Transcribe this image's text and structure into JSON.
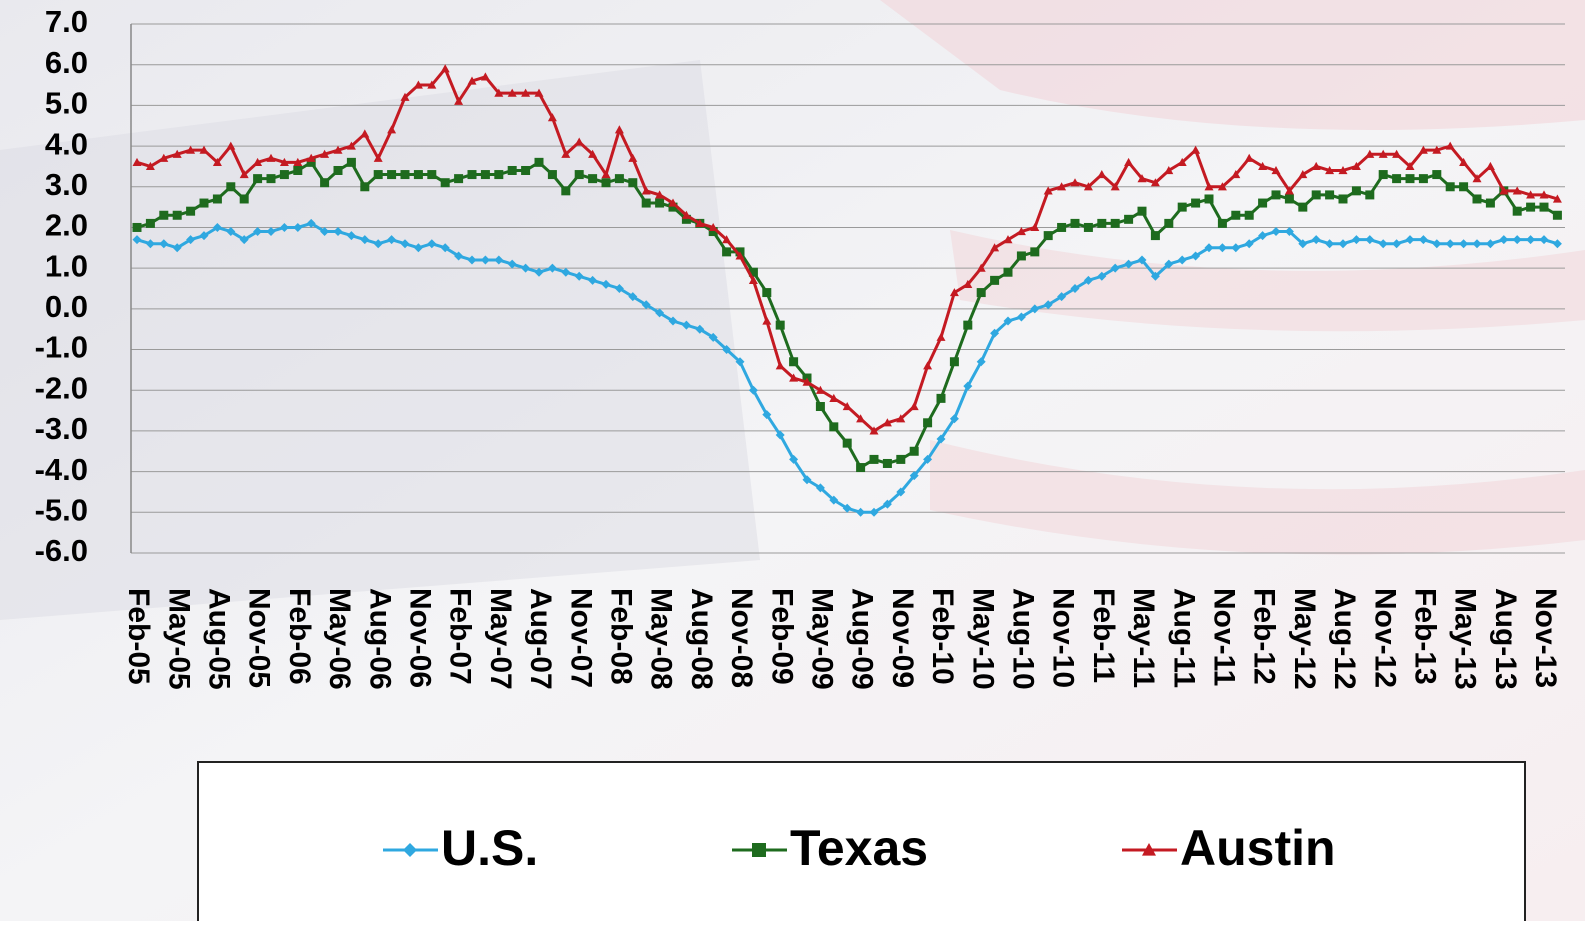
{
  "chart_data": {
    "type": "line",
    "categories": [
      "Feb-05",
      null,
      null,
      "May-05",
      null,
      null,
      "Aug-05",
      null,
      null,
      "Nov-05",
      null,
      null,
      "Feb-06",
      null,
      null,
      "May-06",
      null,
      null,
      "Aug-06",
      null,
      null,
      "Nov-06",
      null,
      null,
      "Feb-07",
      null,
      null,
      "May-07",
      null,
      null,
      "Aug-07",
      null,
      null,
      "Nov-07",
      null,
      null,
      "Feb-08",
      null,
      null,
      "May-08",
      null,
      null,
      "Aug-08",
      null,
      null,
      "Nov-08",
      null,
      null,
      "Feb-09",
      null,
      null,
      "May-09",
      null,
      null,
      "Aug-09",
      null,
      null,
      "Nov-09",
      null,
      null,
      "Feb-10",
      null,
      null,
      "May-10",
      null,
      null,
      "Aug-10",
      null,
      null,
      "Nov-10",
      null,
      null,
      "Feb-11",
      null,
      null,
      "May-11",
      null,
      null,
      "Aug-11",
      null,
      null,
      "Nov-11",
      null,
      null,
      "Feb-12",
      null,
      null,
      "May-12",
      null,
      null,
      "Aug-12",
      null,
      null,
      "Nov-12",
      null,
      null,
      "Feb-13",
      null,
      null,
      "May-13",
      null,
      null,
      "Aug-13",
      null,
      null,
      "Nov-13",
      null
    ],
    "series": [
      {
        "name": "U.S.",
        "color": "#2fa8e0",
        "marker": "diamond",
        "values": [
          1.7,
          1.6,
          1.6,
          1.5,
          1.7,
          1.8,
          2.0,
          1.9,
          1.7,
          1.9,
          1.9,
          2.0,
          2.0,
          2.1,
          1.9,
          1.9,
          1.8,
          1.7,
          1.6,
          1.7,
          1.6,
          1.5,
          1.6,
          1.5,
          1.3,
          1.2,
          1.2,
          1.2,
          1.1,
          1.0,
          0.9,
          1.0,
          0.9,
          0.8,
          0.7,
          0.6,
          0.5,
          0.3,
          0.1,
          -0.1,
          -0.3,
          -0.4,
          -0.5,
          -0.7,
          -1.0,
          -1.3,
          -2.0,
          -2.6,
          -3.1,
          -3.7,
          -4.2,
          -4.4,
          -4.7,
          -4.9,
          -5.0,
          -5.0,
          -4.8,
          -4.5,
          -4.1,
          -3.7,
          -3.2,
          -2.7,
          -1.9,
          -1.3,
          -0.6,
          -0.3,
          -0.2,
          0.0,
          0.1,
          0.3,
          0.5,
          0.7,
          0.8,
          1.0,
          1.1,
          1.2,
          0.8,
          1.1,
          1.2,
          1.3,
          1.5,
          1.5,
          1.5,
          1.6,
          1.8,
          1.9,
          1.9,
          1.6,
          1.7,
          1.6,
          1.6,
          1.7,
          1.7,
          1.6,
          1.6,
          1.7,
          1.7,
          1.6,
          1.6,
          1.6,
          1.6,
          1.6,
          1.7,
          1.7,
          1.7,
          1.7,
          1.6
        ]
      },
      {
        "name": "Texas",
        "color": "#1e6b1e",
        "marker": "square",
        "values": [
          2.0,
          2.1,
          2.3,
          2.3,
          2.4,
          2.6,
          2.7,
          3.0,
          2.7,
          3.2,
          3.2,
          3.3,
          3.4,
          3.6,
          3.1,
          3.4,
          3.6,
          3.0,
          3.3,
          3.3,
          3.3,
          3.3,
          3.3,
          3.1,
          3.2,
          3.3,
          3.3,
          3.3,
          3.4,
          3.4,
          3.6,
          3.3,
          2.9,
          3.3,
          3.2,
          3.1,
          3.2,
          3.1,
          2.6,
          2.6,
          2.5,
          2.2,
          2.1,
          1.9,
          1.4,
          1.4,
          0.9,
          0.4,
          -0.4,
          -1.3,
          -1.7,
          -2.4,
          -2.9,
          -3.3,
          -3.9,
          -3.7,
          -3.8,
          -3.7,
          -3.5,
          -2.8,
          -2.2,
          -1.3,
          -0.4,
          0.4,
          0.7,
          0.9,
          1.3,
          1.4,
          1.8,
          2.0,
          2.1,
          2.0,
          2.1,
          2.1,
          2.2,
          2.4,
          1.8,
          2.1,
          2.5,
          2.6,
          2.7,
          2.1,
          2.3,
          2.3,
          2.6,
          2.8,
          2.7,
          2.5,
          2.8,
          2.8,
          2.7,
          2.9,
          2.8,
          3.3,
          3.2,
          3.2,
          3.2,
          3.3,
          3.0,
          3.0,
          2.7,
          2.6,
          2.9,
          2.4,
          2.5,
          2.5,
          2.3
        ]
      },
      {
        "name": "Austin",
        "color": "#c41a22",
        "marker": "triangle",
        "values": [
          3.6,
          3.5,
          3.7,
          3.8,
          3.9,
          3.9,
          3.6,
          4.0,
          3.3,
          3.6,
          3.7,
          3.6,
          3.6,
          3.7,
          3.8,
          3.9,
          4.0,
          4.3,
          3.7,
          4.4,
          5.2,
          5.5,
          5.5,
          5.9,
          5.1,
          5.6,
          5.7,
          5.3,
          5.3,
          5.3,
          5.3,
          4.7,
          3.8,
          4.1,
          3.8,
          3.3,
          4.4,
          3.7,
          2.9,
          2.8,
          2.6,
          2.3,
          2.1,
          2.0,
          1.7,
          1.3,
          0.7,
          -0.3,
          -1.4,
          -1.7,
          -1.8,
          -2.0,
          -2.2,
          -2.4,
          -2.7,
          -3.0,
          -2.8,
          -2.7,
          -2.4,
          -1.4,
          -0.7,
          0.4,
          0.6,
          1.0,
          1.5,
          1.7,
          1.9,
          2.0,
          2.9,
          3.0,
          3.1,
          3.0,
          3.3,
          3.0,
          3.6,
          3.2,
          3.1,
          3.4,
          3.6,
          3.9,
          3.0,
          3.0,
          3.3,
          3.7,
          3.5,
          3.4,
          2.9,
          3.3,
          3.5,
          3.4,
          3.4,
          3.5,
          3.8,
          3.8,
          3.8,
          3.5,
          3.9,
          3.9,
          4.0,
          3.6,
          3.2,
          3.5,
          2.9,
          2.9,
          2.8,
          2.8,
          2.7
        ]
      }
    ],
    "ylim": [
      -6,
      7
    ],
    "yticks": [
      {
        "value": -6,
        "label": "-6.0"
      },
      {
        "value": -5,
        "label": "-5.0"
      },
      {
        "value": -4,
        "label": "-4.0"
      },
      {
        "value": -3,
        "label": "-3.0"
      },
      {
        "value": -2,
        "label": "-2.0"
      },
      {
        "value": -1,
        "label": "-1.0"
      },
      {
        "value": 0,
        "label": "0.0"
      },
      {
        "value": 1,
        "label": "1.0"
      },
      {
        "value": 2,
        "label": "2.0"
      },
      {
        "value": 3,
        "label": "3.0"
      },
      {
        "value": 4,
        "label": "4.0"
      },
      {
        "value": 5,
        "label": "5.0"
      },
      {
        "value": 6,
        "label": "6.0"
      },
      {
        "value": 7,
        "label": "7.0"
      }
    ],
    "grid": true,
    "legend": "bottom"
  }
}
